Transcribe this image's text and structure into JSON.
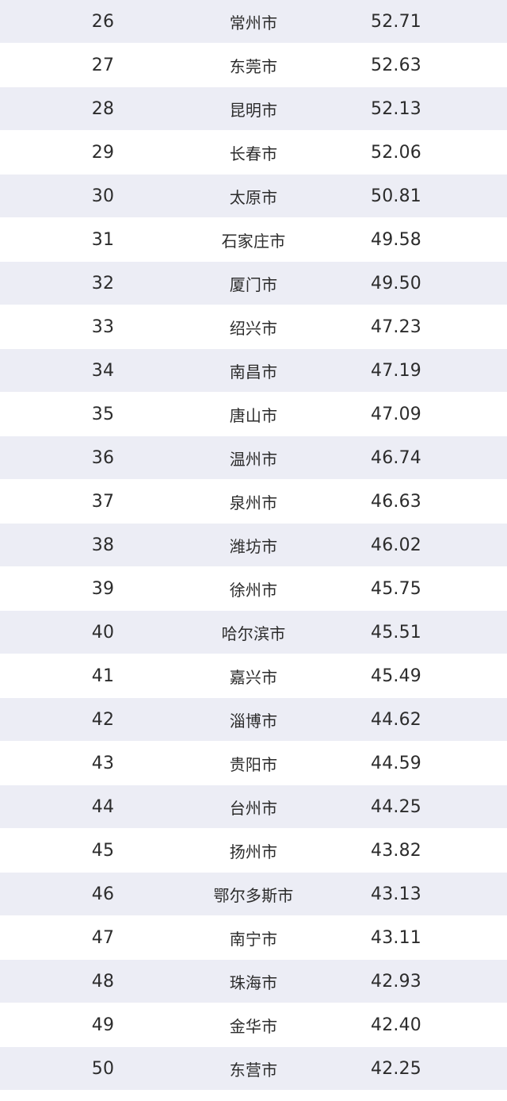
{
  "rows": [
    {
      "rank": "26",
      "city": "常州市",
      "score": "52.71"
    },
    {
      "rank": "27",
      "city": "东莞市",
      "score": "52.63"
    },
    {
      "rank": "28",
      "city": "昆明市",
      "score": "52.13"
    },
    {
      "rank": "29",
      "city": "长春市",
      "score": "52.06"
    },
    {
      "rank": "30",
      "city": "太原市",
      "score": "50.81"
    },
    {
      "rank": "31",
      "city": "石家庄市",
      "score": "49.58"
    },
    {
      "rank": "32",
      "city": "厦门市",
      "score": "49.50"
    },
    {
      "rank": "33",
      "city": "绍兴市",
      "score": "47.23"
    },
    {
      "rank": "34",
      "city": "南昌市",
      "score": "47.19"
    },
    {
      "rank": "35",
      "city": "唐山市",
      "score": "47.09"
    },
    {
      "rank": "36",
      "city": "温州市",
      "score": "46.74"
    },
    {
      "rank": "37",
      "city": "泉州市",
      "score": "46.63"
    },
    {
      "rank": "38",
      "city": "潍坊市",
      "score": "46.02"
    },
    {
      "rank": "39",
      "city": "徐州市",
      "score": "45.75"
    },
    {
      "rank": "40",
      "city": "哈尔滨市",
      "score": "45.51"
    },
    {
      "rank": "41",
      "city": "嘉兴市",
      "score": "45.49"
    },
    {
      "rank": "42",
      "city": "淄博市",
      "score": "44.62"
    },
    {
      "rank": "43",
      "city": "贵阳市",
      "score": "44.59"
    },
    {
      "rank": "44",
      "city": "台州市",
      "score": "44.25"
    },
    {
      "rank": "45",
      "city": "扬州市",
      "score": "43.82"
    },
    {
      "rank": "46",
      "city": "鄂尔多斯市",
      "score": "43.13"
    },
    {
      "rank": "47",
      "city": "南宁市",
      "score": "43.11"
    },
    {
      "rank": "48",
      "city": "珠海市",
      "score": "42.93"
    },
    {
      "rank": "49",
      "city": "金华市",
      "score": "42.40"
    },
    {
      "rank": "50",
      "city": "东营市",
      "score": "42.25"
    }
  ]
}
